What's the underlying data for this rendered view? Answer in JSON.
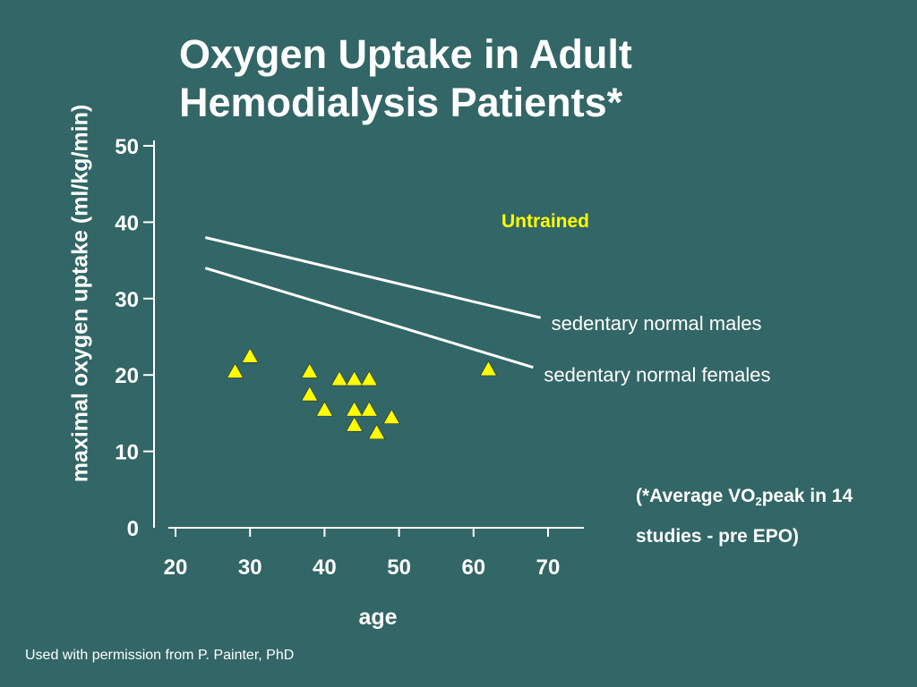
{
  "title_lines": [
    "Oxygen Uptake in Adult",
    "Hemodialysis Patients*"
  ],
  "footnote": {
    "line1_prefix": "(*Average VO",
    "line1_sub": "2",
    "line1_suffix": "peak in 14",
    "line2": "studies - pre EPO)"
  },
  "credit": "Used with permission from P. Painter, PhD",
  "colors": {
    "background": "#336666",
    "text": "#ffffff",
    "marker": "#ffff00",
    "highlight": "#ffff00"
  },
  "chart_data": {
    "type": "scatter",
    "title": "Oxygen Uptake in Adult Hemodialysis Patients*",
    "xlabel": "age",
    "ylabel": "maximal oxygen uptake (ml/kg/min)",
    "xlim": [
      20,
      70
    ],
    "ylim": [
      0,
      50
    ],
    "x_ticks": [
      20,
      30,
      40,
      50,
      60,
      70
    ],
    "y_ticks": [
      0,
      10,
      20,
      30,
      40,
      50
    ],
    "grid": false,
    "annotations": [
      {
        "text": "Untrained",
        "color": "#ffff00"
      }
    ],
    "series": [
      {
        "name": "",
        "marker": "triangle",
        "color": "#ffff00",
        "points": [
          {
            "x": 28,
            "y": 20.5
          },
          {
            "x": 30,
            "y": 22.5
          },
          {
            "x": 38,
            "y": 20.5
          },
          {
            "x": 38,
            "y": 17.5
          },
          {
            "x": 40,
            "y": 15.5
          },
          {
            "x": 42,
            "y": 19.5
          },
          {
            "x": 44,
            "y": 19.5
          },
          {
            "x": 44,
            "y": 15.5
          },
          {
            "x": 44,
            "y": 13.5
          },
          {
            "x": 46,
            "y": 19.5
          },
          {
            "x": 46,
            "y": 15.5
          },
          {
            "x": 47,
            "y": 12.5
          },
          {
            "x": 49,
            "y": 14.5
          },
          {
            "x": 62,
            "y": 20.8
          }
        ]
      }
    ],
    "lines": [
      {
        "name": "sedentary normal males",
        "x": [
          24,
          69
        ],
        "y": [
          38,
          27.5
        ]
      },
      {
        "name": "sedentary normal females",
        "x": [
          24,
          68
        ],
        "y": [
          34,
          21
        ]
      }
    ]
  }
}
